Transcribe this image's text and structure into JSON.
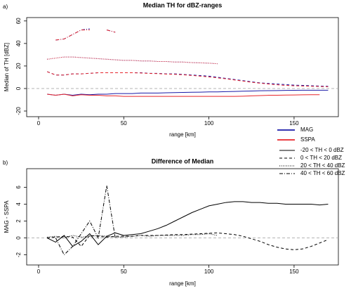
{
  "chart_data": [
    {
      "type": "line",
      "label": "a)",
      "title": "Median TH for dBZ-ranges",
      "xlabel": "range [km]",
      "ylabel": "Median of TH [dBZ]",
      "x": [
        5,
        10,
        15,
        20,
        25,
        30,
        35,
        40,
        45,
        50,
        55,
        60,
        65,
        70,
        75,
        80,
        85,
        90,
        95,
        100,
        105,
        110,
        115,
        120,
        125,
        130,
        135,
        140,
        145,
        150,
        155,
        160,
        165,
        170
      ],
      "xlim": [
        -7,
        176
      ],
      "xticks": [
        0,
        50,
        100,
        150
      ],
      "ylim": [
        -25,
        63
      ],
      "yticks": [
        -20,
        0,
        20,
        40,
        60
      ],
      "reference_line": 0,
      "series": [
        {
          "name": "MAG",
          "color": "#1a1aa8",
          "groups": [
            {
              "dash": "solid",
              "values": [
                -5,
                -6,
                -5,
                -6,
                -5,
                -5.5,
                -5,
                -5,
                -4.5,
                -4.5,
                -4.5,
                -4,
                -4,
                -4,
                -3.8,
                -3.6,
                -3.5,
                -3.3,
                -3.2,
                -3,
                -3,
                -2.8,
                -2.6,
                -2.4,
                -2.2,
                -2,
                -1.9,
                -1.8,
                -1.7,
                -1.6,
                -1.5,
                -1.5,
                -1.5,
                -1.5
              ]
            },
            {
              "dash": "dashed",
              "values": [
                15,
                12,
                12,
                13,
                13,
                13.5,
                14,
                14,
                14,
                14,
                14,
                14,
                13.5,
                13.5,
                13,
                13,
                12.5,
                12,
                11.5,
                11,
                10,
                9,
                8,
                7,
                6,
                5,
                4.5,
                4,
                3.5,
                3,
                2.8,
                2.5,
                2.2,
                2
              ]
            },
            {
              "dash": "dotted",
              "values": [
                26,
                27,
                28,
                28,
                27.5,
                27,
                26.5,
                26,
                25.5,
                25,
                25,
                24.5,
                24.5,
                24,
                24,
                23.5,
                23.5,
                23,
                22.8,
                22.5,
                22,
                null,
                null,
                null,
                null,
                null,
                null,
                null,
                null,
                null,
                null,
                null,
                null,
                null
              ]
            },
            {
              "dash": "dotdash",
              "values": [
                null,
                43,
                44,
                48,
                52,
                53,
                null,
                52,
                50,
                null,
                null,
                null,
                null,
                null,
                null,
                null,
                null,
                null,
                null,
                null,
                null,
                null,
                null,
                null,
                null,
                null,
                null,
                null,
                null,
                null,
                null,
                null,
                null,
                null
              ]
            }
          ]
        },
        {
          "name": "SSPA",
          "color": "#e8262b",
          "groups": [
            {
              "dash": "solid",
              "values": [
                -5,
                -6,
                -5,
                -6.5,
                -5.5,
                -6,
                -6,
                -6.5,
                -6.5,
                -7,
                -7,
                -7,
                -7,
                -7,
                -7,
                -7,
                -7,
                -7,
                -7,
                -7,
                -7,
                -7,
                -7,
                -6.8,
                -6.5,
                -6.3,
                -6,
                -6,
                -5.8,
                -5.7,
                -5.6,
                -5.5,
                -5.5,
                null
              ]
            },
            {
              "dash": "dashed",
              "values": [
                15,
                12,
                12,
                13,
                13,
                13.5,
                14,
                14,
                14,
                14,
                14,
                13.8,
                13.4,
                13.2,
                12.8,
                12.6,
                12.2,
                11.6,
                11,
                10.3,
                9.5,
                8.6,
                7.6,
                6.6,
                5.6,
                4.7,
                4,
                3.3,
                2.8,
                2.4,
                2.2,
                2,
                1.8,
                1.6
              ]
            },
            {
              "dash": "dotted",
              "values": [
                26,
                27,
                28,
                28,
                27.5,
                27,
                26.5,
                26,
                25.5,
                25,
                25,
                24.5,
                24.5,
                24,
                24,
                23.5,
                23.5,
                23,
                22.8,
                22.5,
                22,
                null,
                null,
                null,
                null,
                null,
                null,
                null,
                null,
                null,
                null,
                null,
                null,
                null
              ]
            },
            {
              "dash": "dotdash",
              "values": [
                null,
                43,
                44,
                48,
                52,
                52,
                null,
                52,
                50,
                null,
                null,
                null,
                null,
                null,
                null,
                null,
                null,
                null,
                null,
                null,
                null,
                null,
                null,
                null,
                null,
                null,
                null,
                null,
                null,
                null,
                null,
                null,
                null,
                null
              ]
            }
          ]
        }
      ]
    },
    {
      "type": "line",
      "label": "b)",
      "title": "Difference of Median",
      "xlabel": "range [km]",
      "ylabel": "MAG - SSPA",
      "x": [
        5,
        10,
        15,
        20,
        25,
        30,
        35,
        40,
        45,
        50,
        55,
        60,
        65,
        70,
        75,
        80,
        85,
        90,
        95,
        100,
        105,
        110,
        115,
        120,
        125,
        130,
        135,
        140,
        145,
        150,
        155,
        160,
        165,
        170
      ],
      "xlim": [
        -7,
        176
      ],
      "xticks": [
        0,
        50,
        100,
        150
      ],
      "ylim": [
        -3.2,
        8.2
      ],
      "yticks": [
        -2,
        0,
        2,
        4,
        6
      ],
      "reference_line": 0,
      "series": [
        {
          "name": "-20 < TH < 0 dBZ",
          "dash": "solid",
          "values": [
            0,
            -0.5,
            0.3,
            -1,
            -0.4,
            0.5,
            -0.8,
            0.2,
            0.6,
            0.3,
            0.4,
            0.5,
            0.8,
            1.1,
            1.5,
            2,
            2.5,
            3,
            3.4,
            3.8,
            4,
            4.2,
            4.3,
            4.3,
            4.2,
            4.2,
            4.1,
            4.1,
            4,
            4,
            4,
            4,
            3.9,
            4
          ]
        },
        {
          "name": "0 < TH < 20 dBZ",
          "dash": "dashed",
          "values": [
            0,
            0.1,
            0.2,
            0.1,
            -1,
            0.3,
            0.2,
            0.1,
            0.2,
            0.2,
            0.2,
            0.3,
            0.3,
            0.3,
            0.35,
            0.4,
            0.4,
            0.45,
            0.5,
            0.55,
            0.6,
            0.5,
            0.4,
            0.2,
            -0.1,
            -0.4,
            -0.8,
            -1.1,
            -1.3,
            -1.4,
            -1.3,
            -1,
            -0.6,
            -0.2
          ]
        },
        {
          "name": "20 < TH < 40 dBZ",
          "dash": "dotted",
          "values": [
            0.1,
            0.2,
            0,
            0.3,
            0.1,
            0.2,
            0.3,
            0.2,
            0.1,
            0.1,
            0.2,
            0.3,
            0.2,
            0.3,
            0.3,
            0.3,
            0.3,
            0.4,
            0.4,
            0.5,
            0.3,
            null,
            null,
            null,
            null,
            null,
            null,
            null,
            null,
            null,
            null,
            null,
            null,
            null
          ]
        },
        {
          "name": "40 < TH < 60 dBZ",
          "dash": "dotdash",
          "values": [
            null,
            0,
            -2,
            -1,
            0.5,
            2,
            0,
            6.2,
            0,
            null,
            null,
            null,
            null,
            null,
            null,
            null,
            null,
            null,
            null,
            null,
            null,
            null,
            null,
            null,
            null,
            null,
            null,
            null,
            null,
            null,
            null,
            null,
            null,
            null
          ]
        }
      ]
    }
  ]
}
